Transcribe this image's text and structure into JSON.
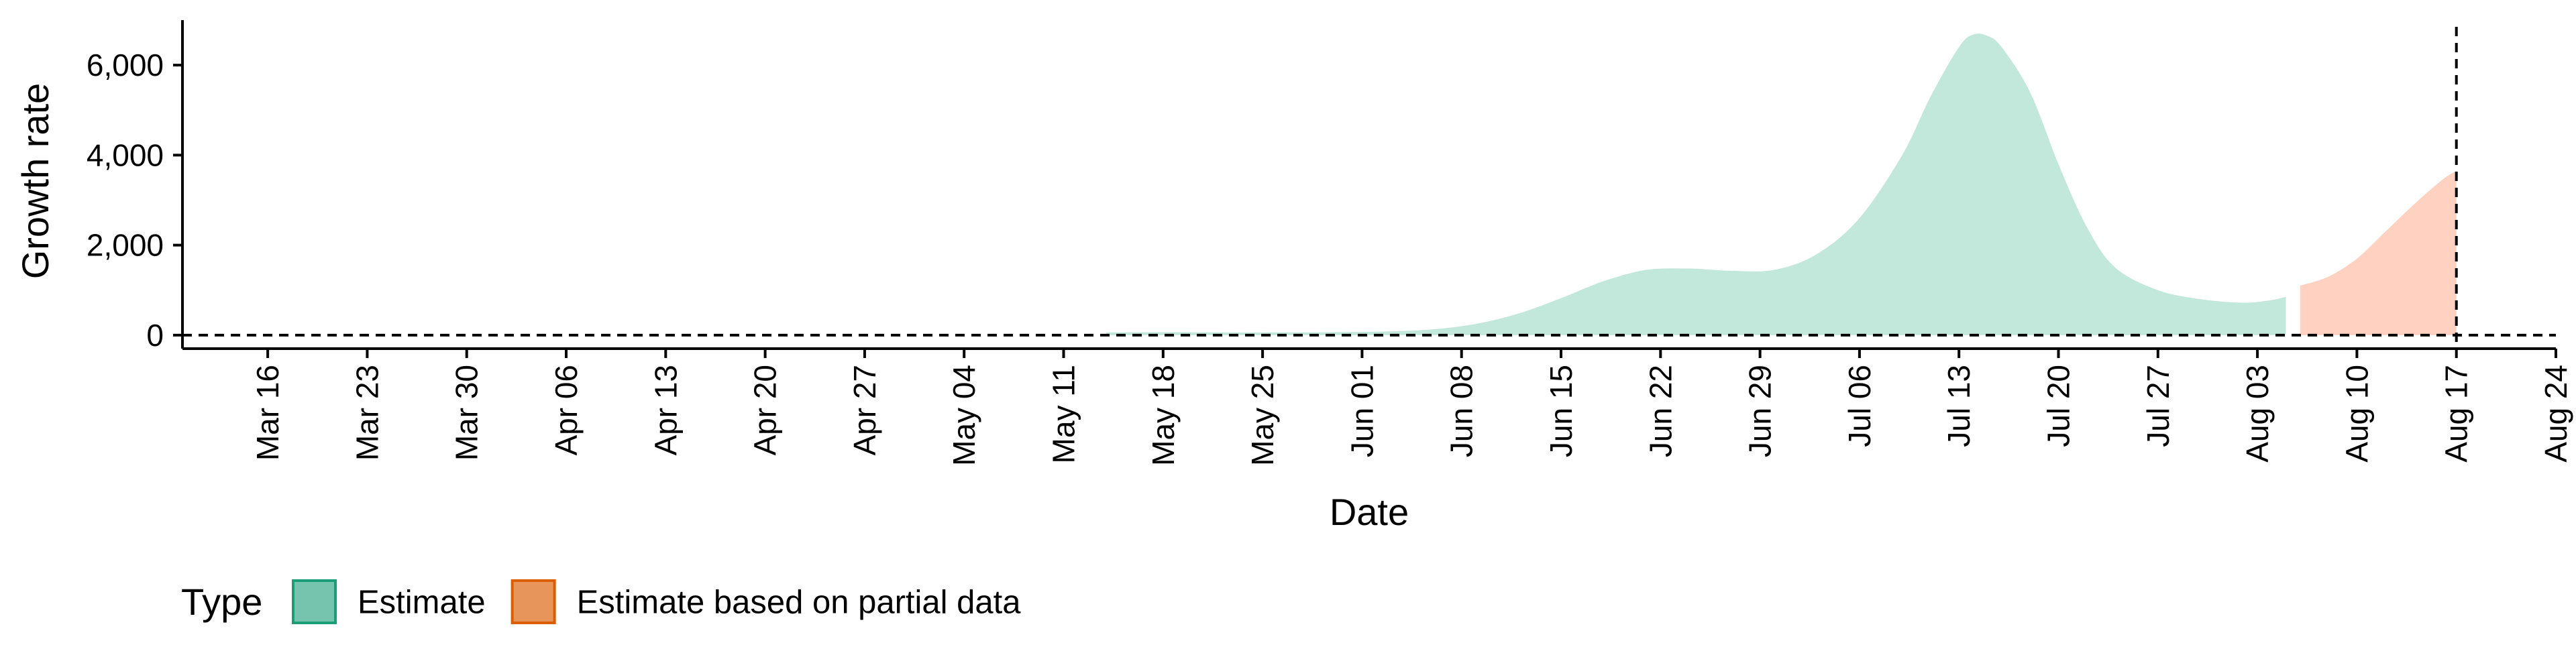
{
  "chart_data": {
    "type": "area",
    "title": "",
    "xlabel": "Date",
    "ylabel": "Growth rate",
    "x_axis": {
      "type": "date",
      "range": [
        "2020-03-10",
        "2020-08-24"
      ],
      "ticks": [
        {
          "date": "2020-03-16",
          "label": "Mar 16"
        },
        {
          "date": "2020-03-23",
          "label": "Mar 23"
        },
        {
          "date": "2020-03-30",
          "label": "Mar 30"
        },
        {
          "date": "2020-04-06",
          "label": "Apr 06"
        },
        {
          "date": "2020-04-13",
          "label": "Apr 13"
        },
        {
          "date": "2020-04-20",
          "label": "Apr 20"
        },
        {
          "date": "2020-04-27",
          "label": "Apr 27"
        },
        {
          "date": "2020-05-04",
          "label": "May 04"
        },
        {
          "date": "2020-05-11",
          "label": "May 11"
        },
        {
          "date": "2020-05-18",
          "label": "May 18"
        },
        {
          "date": "2020-05-25",
          "label": "May 25"
        },
        {
          "date": "2020-06-01",
          "label": "Jun 01"
        },
        {
          "date": "2020-06-08",
          "label": "Jun 08"
        },
        {
          "date": "2020-06-15",
          "label": "Jun 15"
        },
        {
          "date": "2020-06-22",
          "label": "Jun 22"
        },
        {
          "date": "2020-06-29",
          "label": "Jun 29"
        },
        {
          "date": "2020-07-06",
          "label": "Jul 06"
        },
        {
          "date": "2020-07-13",
          "label": "Jul 13"
        },
        {
          "date": "2020-07-20",
          "label": "Jul 20"
        },
        {
          "date": "2020-07-27",
          "label": "Jul 27"
        },
        {
          "date": "2020-08-03",
          "label": "Aug 03"
        },
        {
          "date": "2020-08-10",
          "label": "Aug 10"
        },
        {
          "date": "2020-08-17",
          "label": "Aug 17"
        },
        {
          "date": "2020-08-24",
          "label": "Aug 24"
        }
      ]
    },
    "y_axis": {
      "range": [
        -300,
        7000
      ],
      "ticks": [
        {
          "value": 0,
          "label": "0"
        },
        {
          "value": 2000,
          "label": "2,000"
        },
        {
          "value": 4000,
          "label": "4,000"
        },
        {
          "value": 6000,
          "label": "6,000"
        }
      ]
    },
    "grid": false,
    "reference_lines": [
      {
        "orientation": "horizontal",
        "value": 0,
        "style": "dashed"
      },
      {
        "orientation": "vertical",
        "value": "2020-08-17",
        "style": "dashed"
      }
    ],
    "series": [
      {
        "name": "Estimate",
        "color": "#66c2a5",
        "opacity": 0.4,
        "points": [
          {
            "x": "2020-05-14",
            "y": 60
          },
          {
            "x": "2020-05-18",
            "y": 65
          },
          {
            "x": "2020-05-22",
            "y": 62
          },
          {
            "x": "2020-05-26",
            "y": 60
          },
          {
            "x": "2020-05-30",
            "y": 65
          },
          {
            "x": "2020-06-03",
            "y": 85
          },
          {
            "x": "2020-06-06",
            "y": 130
          },
          {
            "x": "2020-06-09",
            "y": 250
          },
          {
            "x": "2020-06-12",
            "y": 480
          },
          {
            "x": "2020-06-15",
            "y": 820
          },
          {
            "x": "2020-06-18",
            "y": 1200
          },
          {
            "x": "2020-06-21",
            "y": 1450
          },
          {
            "x": "2020-06-24",
            "y": 1480
          },
          {
            "x": "2020-06-27",
            "y": 1430
          },
          {
            "x": "2020-06-30",
            "y": 1450
          },
          {
            "x": "2020-07-03",
            "y": 1800
          },
          {
            "x": "2020-07-06",
            "y": 2600
          },
          {
            "x": "2020-07-09",
            "y": 4000
          },
          {
            "x": "2020-07-11",
            "y": 5300
          },
          {
            "x": "2020-07-13",
            "y": 6400
          },
          {
            "x": "2020-07-14",
            "y": 6680
          },
          {
            "x": "2020-07-15",
            "y": 6650
          },
          {
            "x": "2020-07-16",
            "y": 6400
          },
          {
            "x": "2020-07-18",
            "y": 5400
          },
          {
            "x": "2020-07-20",
            "y": 3800
          },
          {
            "x": "2020-07-22",
            "y": 2400
          },
          {
            "x": "2020-07-24",
            "y": 1500
          },
          {
            "x": "2020-07-27",
            "y": 1000
          },
          {
            "x": "2020-07-30",
            "y": 800
          },
          {
            "x": "2020-08-02",
            "y": 720
          },
          {
            "x": "2020-08-04",
            "y": 780
          },
          {
            "x": "2020-08-05",
            "y": 850
          }
        ]
      },
      {
        "name": "Estimate based on partial data",
        "color": "#fc8d62",
        "opacity": 0.4,
        "points": [
          {
            "x": "2020-08-06",
            "y": 1100
          },
          {
            "x": "2020-08-08",
            "y": 1300
          },
          {
            "x": "2020-08-10",
            "y": 1700
          },
          {
            "x": "2020-08-12",
            "y": 2300
          },
          {
            "x": "2020-08-14",
            "y": 2900
          },
          {
            "x": "2020-08-16",
            "y": 3450
          },
          {
            "x": "2020-08-17",
            "y": 3650
          }
        ]
      }
    ],
    "legend": {
      "title": "Type",
      "placement": "bottom-left",
      "entries": [
        {
          "label": "Estimate",
          "fill": "#76c4ad",
          "border": "#1b9e77"
        },
        {
          "label": "Estimate based on partial data",
          "fill": "#e8955c",
          "border": "#d95f02"
        }
      ]
    }
  }
}
